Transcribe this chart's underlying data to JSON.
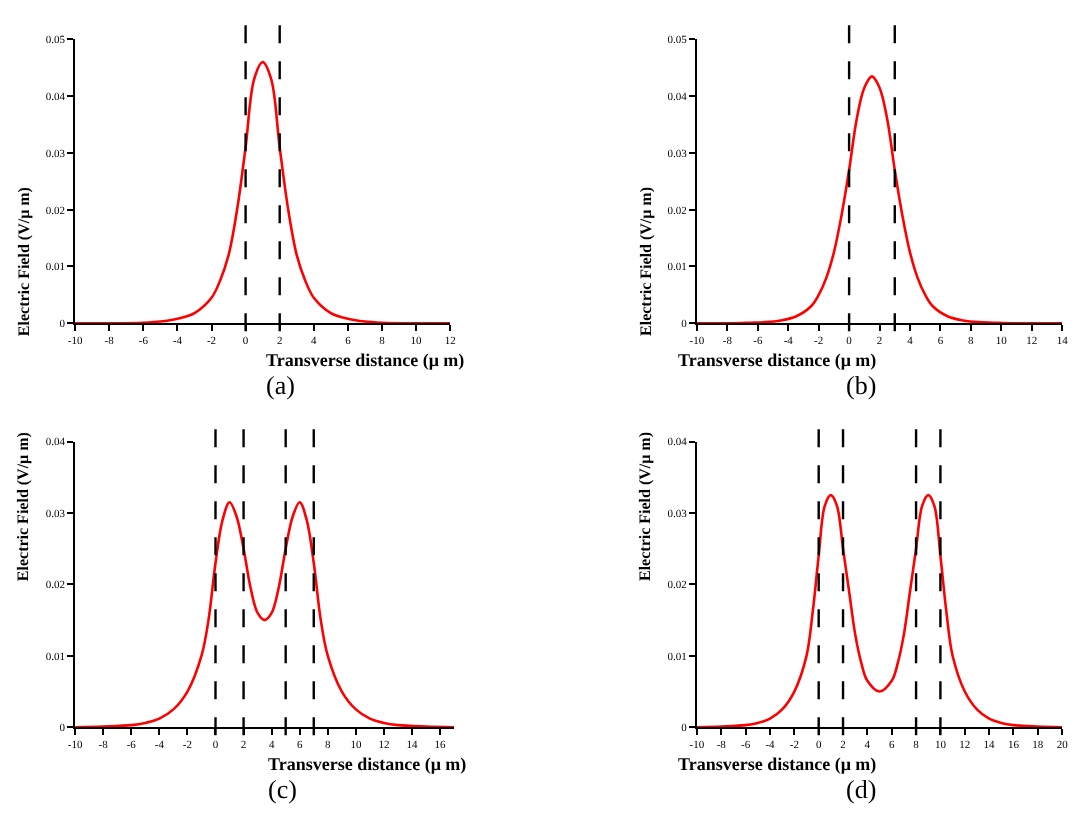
{
  "chart_data": [
    {
      "type": "line",
      "xlabel": "Transverse distance (μ m)",
      "ylabel": "Electric Field (V/μ m)",
      "annotations": [
        "(a)"
      ],
      "marker": "none",
      "line_style": "solid",
      "xlim": [
        -10,
        12
      ],
      "xticks": [
        -10,
        -8,
        -6,
        -4,
        -2,
        0,
        2,
        4,
        6,
        8,
        10,
        12
      ],
      "ylim": [
        0,
        0.05
      ],
      "yticks": [
        0,
        0.01,
        0.02,
        0.03,
        0.04,
        0.05
      ],
      "ref_lines": [
        {
          "axis": "x",
          "value": 0,
          "color": "#000000",
          "line_style": "dashed"
        },
        {
          "axis": "x",
          "value": 2,
          "color": "#000000",
          "line_style": "dashed"
        }
      ],
      "series": [
        {
          "color": "#ff0000",
          "x": [
            -10,
            -8,
            -6,
            -5,
            -4,
            -3,
            -2,
            -1.5,
            -1,
            -0.5,
            0,
            0.5,
            1,
            1.5,
            2,
            2.5,
            3,
            3.5,
            4,
            5,
            6,
            7,
            8,
            10,
            12
          ],
          "values": [
            0,
            0,
            0.0001,
            0.0003,
            0.0008,
            0.0018,
            0.0045,
            0.0075,
            0.012,
            0.02,
            0.031,
            0.043,
            0.046,
            0.043,
            0.031,
            0.02,
            0.012,
            0.0075,
            0.0045,
            0.0018,
            0.0008,
            0.0003,
            0.0001,
            0,
            0
          ]
        }
      ]
    },
    {
      "type": "line",
      "xlabel": "Transverse distance (μ m)",
      "ylabel": "Electric Field (V/μ m)",
      "annotations": [
        "(b)"
      ],
      "marker": "none",
      "line_style": "solid",
      "xlim": [
        -10,
        14
      ],
      "xticks": [
        -10,
        -8,
        -6,
        -4,
        -2,
        0,
        2,
        4,
        6,
        8,
        10,
        12,
        14
      ],
      "ylim": [
        0,
        0.05
      ],
      "yticks": [
        0,
        0.01,
        0.02,
        0.03,
        0.04,
        0.05
      ],
      "ref_lines": [
        {
          "axis": "x",
          "value": 0,
          "color": "#000000",
          "line_style": "dashed"
        },
        {
          "axis": "x",
          "value": 3,
          "color": "#000000",
          "line_style": "dashed"
        }
      ],
      "series": [
        {
          "color": "#ff0000",
          "x": [
            -10,
            -8,
            -6.5,
            -5.5,
            -4.5,
            -3.5,
            -2.5,
            -2,
            -1.5,
            -1,
            -0.5,
            0,
            0.5,
            1,
            1.5,
            2,
            2.5,
            3,
            3.5,
            4,
            4.5,
            5,
            5.5,
            6.5,
            7.5,
            8.5,
            9.5,
            11,
            14
          ],
          "values": [
            0,
            0,
            0.0001,
            0.0002,
            0.0005,
            0.0012,
            0.003,
            0.005,
            0.008,
            0.0125,
            0.019,
            0.027,
            0.036,
            0.0415,
            0.0435,
            0.0415,
            0.036,
            0.027,
            0.019,
            0.0125,
            0.008,
            0.005,
            0.003,
            0.0012,
            0.0005,
            0.0002,
            0.0001,
            0,
            0
          ]
        }
      ]
    },
    {
      "type": "line",
      "xlabel": "Transverse distance (μ m)",
      "ylabel": "Electric Field (V/μ m)",
      "annotations": [
        "(c)"
      ],
      "marker": "none",
      "line_style": "solid",
      "xlim": [
        -10,
        17
      ],
      "xticks": [
        -10,
        -8,
        -6,
        -4,
        -2,
        0,
        2,
        4,
        6,
        8,
        10,
        12,
        14,
        16
      ],
      "ylim": [
        0,
        0.04
      ],
      "yticks": [
        0,
        0.01,
        0.02,
        0.03,
        0.04
      ],
      "ref_lines": [
        {
          "axis": "x",
          "value": 0,
          "color": "#000000",
          "line_style": "dashed"
        },
        {
          "axis": "x",
          "value": 2,
          "color": "#000000",
          "line_style": "dashed"
        },
        {
          "axis": "x",
          "value": 5,
          "color": "#000000",
          "line_style": "dashed"
        },
        {
          "axis": "x",
          "value": 7,
          "color": "#000000",
          "line_style": "dashed"
        }
      ],
      "series": [
        {
          "color": "#ff0000",
          "x": [
            -10,
            -8,
            -6,
            -5,
            -4,
            -3,
            -2,
            -1,
            -0.5,
            0,
            0.5,
            1,
            1.5,
            2,
            2.5,
            3,
            3.5,
            4,
            4.5,
            5,
            5.5,
            6,
            6.5,
            7,
            7.5,
            8,
            9,
            10,
            11,
            12,
            13,
            15,
            17
          ],
          "values": [
            0,
            0.0001,
            0.0003,
            0.0006,
            0.0012,
            0.0025,
            0.005,
            0.01,
            0.015,
            0.023,
            0.029,
            0.0315,
            0.0295,
            0.025,
            0.0195,
            0.016,
            0.015,
            0.016,
            0.0195,
            0.025,
            0.0295,
            0.0315,
            0.029,
            0.023,
            0.015,
            0.01,
            0.005,
            0.0025,
            0.0012,
            0.0006,
            0.0003,
            0.0001,
            0
          ]
        }
      ]
    },
    {
      "type": "line",
      "xlabel": "Transverse distance (μ m)",
      "ylabel": "Electric Field (V/μ m)",
      "annotations": [
        "(d)"
      ],
      "marker": "none",
      "line_style": "solid",
      "xlim": [
        -10,
        20
      ],
      "xticks": [
        -10,
        -8,
        -6,
        -4,
        -2,
        0,
        2,
        4,
        6,
        8,
        10,
        12,
        14,
        16,
        18,
        20
      ],
      "ylim": [
        0,
        0.04
      ],
      "yticks": [
        0,
        0.01,
        0.02,
        0.03,
        0.04
      ],
      "ref_lines": [
        {
          "axis": "x",
          "value": 0,
          "color": "#000000",
          "line_style": "dashed"
        },
        {
          "axis": "x",
          "value": 2,
          "color": "#000000",
          "line_style": "dashed"
        },
        {
          "axis": "x",
          "value": 8,
          "color": "#000000",
          "line_style": "dashed"
        },
        {
          "axis": "x",
          "value": 10,
          "color": "#000000",
          "line_style": "dashed"
        }
      ],
      "series": [
        {
          "color": "#ff0000",
          "x": [
            -10,
            -8,
            -6,
            -5,
            -4,
            -3,
            -2,
            -1,
            -0.5,
            0,
            0.5,
            1,
            1.5,
            2,
            2.5,
            3,
            3.5,
            4,
            5,
            6,
            6.5,
            7,
            7.5,
            8,
            8.5,
            9,
            9.5,
            10,
            10.5,
            11,
            12,
            13,
            14,
            15,
            16,
            18,
            20
          ],
          "values": [
            0,
            0.0001,
            0.0003,
            0.0006,
            0.0012,
            0.0025,
            0.005,
            0.01,
            0.016,
            0.024,
            0.031,
            0.0325,
            0.031,
            0.025,
            0.019,
            0.013,
            0.009,
            0.0065,
            0.005,
            0.0065,
            0.009,
            0.013,
            0.019,
            0.025,
            0.031,
            0.0325,
            0.031,
            0.024,
            0.016,
            0.01,
            0.005,
            0.0025,
            0.0012,
            0.0006,
            0.0003,
            0.0001,
            0
          ]
        }
      ]
    }
  ]
}
